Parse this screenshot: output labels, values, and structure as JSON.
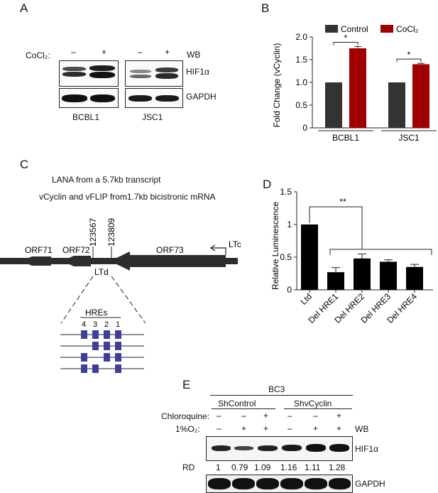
{
  "panelA": {
    "letter": "A",
    "treatment_label": "CoCl₂:",
    "lanes": [
      "–",
      "+",
      "–",
      "+"
    ],
    "wb_label": "WB",
    "proteins": [
      "HIF1α",
      "GAPDH"
    ],
    "cell_lines": [
      "BCBL1",
      "JSC1"
    ]
  },
  "panelB": {
    "letter": "B",
    "legend": [
      "Control",
      "CoCl₂"
    ],
    "ylabel": "Fold Change (vCyclin)",
    "significance": [
      "*",
      "*"
    ]
  },
  "panelC": {
    "letter": "C",
    "line1": "LANA from a 5.7kb transcript",
    "line2": "vCyclin and vFLIP from1.7kb bicistronic mRNA",
    "coord1": "123567",
    "coord2": "123809",
    "orfs": [
      "ORF71",
      "ORF72",
      "ORF73"
    ],
    "ltc": "LTc",
    "ltd": "LTd",
    "hres_title": "HREs",
    "hre_numbers": [
      "4",
      "3",
      "2",
      "1"
    ]
  },
  "panelD": {
    "letter": "D",
    "ylabel": "Relative Luminescence",
    "significance": "**"
  },
  "panelE": {
    "letter": "E",
    "cell_line": "BC3",
    "groups": [
      "ShControl",
      "ShvCyclin"
    ],
    "row1_label": "Chloroquine:",
    "row1": [
      "–",
      "–",
      "+",
      "–",
      "–",
      "+"
    ],
    "row2_label": "1%O₂:",
    "row2": [
      "–",
      "+",
      "+",
      "–",
      "+",
      "+"
    ],
    "wb_label": "WB",
    "proteins": [
      "HIF1α",
      "GAPDH"
    ],
    "rd_label": "RD",
    "rd_values": [
      "1",
      "0.79",
      "1.09",
      "1.16",
      "1.11",
      "1.28"
    ]
  },
  "chart_data": [
    {
      "type": "bar",
      "panel": "B",
      "categories": [
        "BCBL1",
        "JSC1"
      ],
      "series": [
        {
          "name": "Control",
          "values": [
            1.0,
            1.0
          ],
          "errors": [
            0,
            0
          ],
          "color": "#333333"
        },
        {
          "name": "CoCl₂",
          "values": [
            1.75,
            1.4
          ],
          "errors": [
            0.04,
            0.02
          ],
          "color": "#a00000"
        }
      ],
      "ylabel": "Fold Change (vCyclin)",
      "ylim": [
        0,
        2.0
      ],
      "yticks": [
        "0",
        "0.5",
        "1.0",
        "1.5",
        "2.0"
      ],
      "grid": false,
      "legend": "top"
    },
    {
      "type": "bar",
      "panel": "D",
      "categories": [
        "Ltd",
        "Del HRE1",
        "Del HRE2",
        "Del HRE3",
        "Del HRE4"
      ],
      "values": [
        1.0,
        0.27,
        0.48,
        0.43,
        0.35
      ],
      "errors": [
        0,
        0.07,
        0.07,
        0.03,
        0.04
      ],
      "color": "#000000",
      "ylabel": "Relative Luminescence",
      "ylim": [
        0,
        1.5
      ],
      "yticks": [
        "0",
        "0.5",
        "1",
        "1.5"
      ],
      "grid": false
    }
  ]
}
